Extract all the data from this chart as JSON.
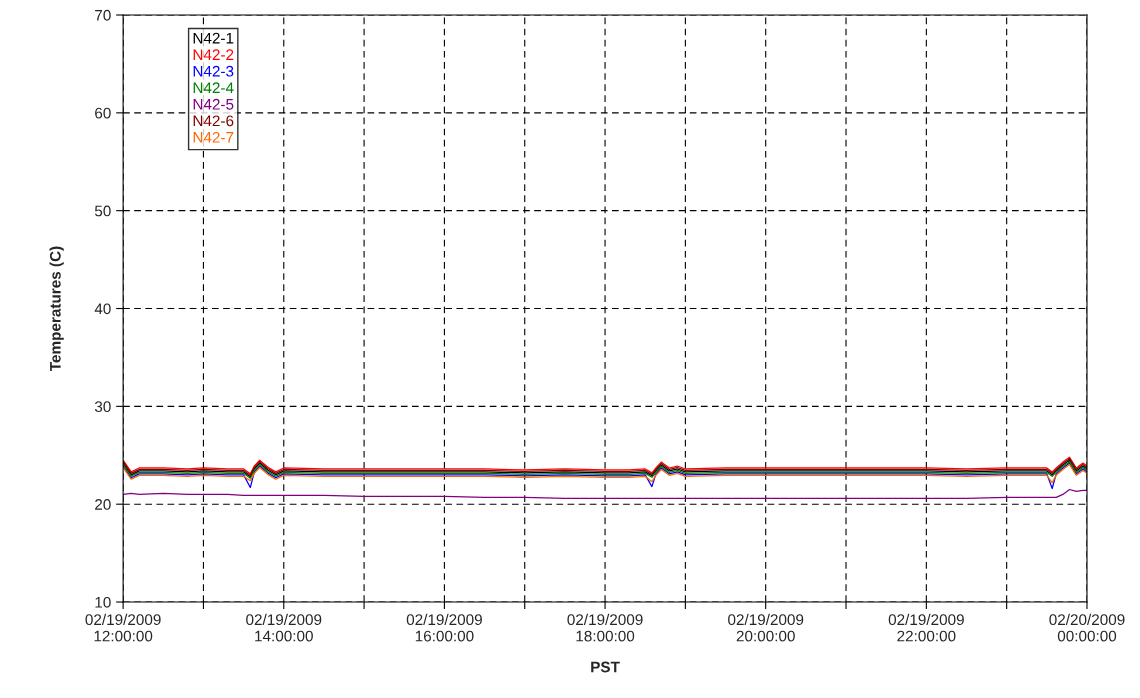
{
  "chart_data": {
    "type": "line",
    "xlabel": "PST",
    "ylabel": "Temperatures (C)",
    "x": [
      "2009-02-19T12:00",
      "2009-02-19T12:06",
      "2009-02-19T12:12",
      "2009-02-19T12:30",
      "2009-02-19T12:48",
      "2009-02-19T13:00",
      "2009-02-19T13:18",
      "2009-02-19T13:30",
      "2009-02-19T13:35",
      "2009-02-19T13:38",
      "2009-02-19T13:42",
      "2009-02-19T13:48",
      "2009-02-19T13:54",
      "2009-02-19T14:00",
      "2009-02-19T14:30",
      "2009-02-19T15:00",
      "2009-02-19T15:30",
      "2009-02-19T16:00",
      "2009-02-19T16:30",
      "2009-02-19T17:00",
      "2009-02-19T17:30",
      "2009-02-19T18:00",
      "2009-02-19T18:18",
      "2009-02-19T18:30",
      "2009-02-19T18:35",
      "2009-02-19T18:38",
      "2009-02-19T18:42",
      "2009-02-19T18:48",
      "2009-02-19T18:54",
      "2009-02-19T19:00",
      "2009-02-19T19:30",
      "2009-02-19T20:00",
      "2009-02-19T20:30",
      "2009-02-19T21:00",
      "2009-02-19T21:30",
      "2009-02-19T22:00",
      "2009-02-19T22:30",
      "2009-02-19T23:00",
      "2009-02-19T23:24",
      "2009-02-19T23:30",
      "2009-02-19T23:34",
      "2009-02-19T23:37",
      "2009-02-19T23:42",
      "2009-02-19T23:47",
      "2009-02-19T23:52",
      "2009-02-19T23:57",
      "2009-02-20T00:00"
    ],
    "series": [
      {
        "name": "N42-1",
        "color": "#000000",
        "values": [
          24.2,
          23.0,
          23.4,
          23.4,
          23.3,
          23.4,
          23.3,
          23.3,
          22.8,
          23.6,
          24.2,
          23.5,
          23.0,
          23.4,
          23.3,
          23.3,
          23.3,
          23.3,
          23.3,
          23.2,
          23.3,
          23.2,
          23.2,
          23.3,
          22.9,
          23.4,
          24.0,
          23.4,
          23.6,
          23.3,
          23.4,
          23.4,
          23.4,
          23.4,
          23.4,
          23.4,
          23.3,
          23.4,
          23.4,
          23.4,
          23.0,
          23.4,
          24.0,
          24.5,
          23.4,
          23.9,
          23.6
        ]
      },
      {
        "name": "N42-2",
        "color": "#ff0000",
        "values": [
          24.5,
          23.3,
          23.7,
          23.7,
          23.6,
          23.7,
          23.6,
          23.6,
          23.1,
          23.9,
          24.5,
          23.8,
          23.3,
          23.7,
          23.6,
          23.6,
          23.6,
          23.6,
          23.6,
          23.5,
          23.6,
          23.5,
          23.5,
          23.6,
          23.2,
          23.7,
          24.3,
          23.7,
          23.9,
          23.6,
          23.7,
          23.7,
          23.7,
          23.7,
          23.7,
          23.7,
          23.6,
          23.7,
          23.7,
          23.7,
          23.3,
          23.7,
          24.3,
          24.8,
          23.7,
          24.2,
          23.9
        ]
      },
      {
        "name": "N42-3",
        "color": "#0000ff",
        "values": [
          23.9,
          22.7,
          23.1,
          23.1,
          23.0,
          23.1,
          23.0,
          23.0,
          21.7,
          23.3,
          23.9,
          23.2,
          22.7,
          23.1,
          23.0,
          23.0,
          23.0,
          23.0,
          23.0,
          22.9,
          23.0,
          22.9,
          22.9,
          23.0,
          21.8,
          23.1,
          23.7,
          23.1,
          23.3,
          23.0,
          23.1,
          23.1,
          23.1,
          23.1,
          23.1,
          23.1,
          23.0,
          23.1,
          23.1,
          23.1,
          21.6,
          23.1,
          23.7,
          24.2,
          23.1,
          23.6,
          23.3
        ]
      },
      {
        "name": "N42-4",
        "color": "#008000",
        "values": [
          24.05,
          22.85,
          23.25,
          23.25,
          23.15,
          23.25,
          23.15,
          23.15,
          22.65,
          23.45,
          24.05,
          23.35,
          22.85,
          23.25,
          23.15,
          23.15,
          23.15,
          23.15,
          23.15,
          23.05,
          23.15,
          23.05,
          23.05,
          23.15,
          22.75,
          23.25,
          23.85,
          23.25,
          23.45,
          23.15,
          23.25,
          23.25,
          23.25,
          23.25,
          23.25,
          23.25,
          23.15,
          23.25,
          23.25,
          23.25,
          22.85,
          23.25,
          23.85,
          24.35,
          23.25,
          23.75,
          23.45
        ]
      },
      {
        "name": "N42-5",
        "color": "#800080",
        "values": [
          21.0,
          21.1,
          21.0,
          21.1,
          21.0,
          21.0,
          21.0,
          20.9,
          20.9,
          20.9,
          20.9,
          20.9,
          20.9,
          20.9,
          20.9,
          20.8,
          20.8,
          20.8,
          20.7,
          20.7,
          20.6,
          20.6,
          20.6,
          20.6,
          20.6,
          20.6,
          20.6,
          20.6,
          20.6,
          20.6,
          20.6,
          20.6,
          20.6,
          20.6,
          20.6,
          20.6,
          20.6,
          20.7,
          20.7,
          20.7,
          20.7,
          20.7,
          21.0,
          21.5,
          21.3,
          21.4,
          21.4
        ]
      },
      {
        "name": "N42-6",
        "color": "#800000",
        "values": [
          24.35,
          23.15,
          23.55,
          23.55,
          23.45,
          23.55,
          23.45,
          23.45,
          22.95,
          23.75,
          24.35,
          23.65,
          23.15,
          23.55,
          23.45,
          23.45,
          23.45,
          23.45,
          23.45,
          23.35,
          23.45,
          23.35,
          23.35,
          23.45,
          23.05,
          23.55,
          24.15,
          23.55,
          23.75,
          23.45,
          23.55,
          23.55,
          23.55,
          23.55,
          23.55,
          23.55,
          23.45,
          23.55,
          23.55,
          23.55,
          23.15,
          23.55,
          24.15,
          24.65,
          23.55,
          24.05,
          23.75
        ]
      },
      {
        "name": "N42-7",
        "color": "#ff6600",
        "values": [
          23.75,
          22.55,
          22.95,
          22.95,
          22.85,
          22.95,
          22.85,
          22.85,
          22.4,
          23.15,
          23.75,
          23.05,
          22.55,
          22.95,
          22.85,
          22.85,
          22.85,
          22.85,
          22.85,
          22.75,
          22.85,
          22.75,
          22.75,
          22.85,
          22.3,
          22.95,
          23.55,
          22.95,
          23.15,
          22.85,
          22.95,
          22.95,
          22.95,
          22.95,
          22.95,
          22.95,
          22.85,
          22.95,
          22.95,
          22.95,
          22.2,
          22.95,
          23.55,
          24.05,
          22.95,
          23.45,
          23.15
        ]
      }
    ],
    "xlim": [
      "2009-02-19T12:00",
      "2009-02-20T00:00"
    ],
    "xticks": [
      {
        "value": "2009-02-19T12:00",
        "label": "02/19/2009\n12:00:00"
      },
      {
        "value": "2009-02-19T13:00",
        "label": null
      },
      {
        "value": "2009-02-19T14:00",
        "label": "02/19/2009\n14:00:00"
      },
      {
        "value": "2009-02-19T15:00",
        "label": null
      },
      {
        "value": "2009-02-19T16:00",
        "label": "02/19/2009\n16:00:00"
      },
      {
        "value": "2009-02-19T17:00",
        "label": null
      },
      {
        "value": "2009-02-19T18:00",
        "label": "02/19/2009\n18:00:00"
      },
      {
        "value": "2009-02-19T19:00",
        "label": null
      },
      {
        "value": "2009-02-19T20:00",
        "label": "02/19/2009\n20:00:00"
      },
      {
        "value": "2009-02-19T21:00",
        "label": null
      },
      {
        "value": "2009-02-19T22:00",
        "label": "02/19/2009\n22:00:00"
      },
      {
        "value": "2009-02-19T23:00",
        "label": null
      },
      {
        "value": "2009-02-20T00:00",
        "label": "02/20/2009\n00:00:00"
      }
    ],
    "ylim": [
      10,
      70
    ],
    "yticks": [
      10,
      20,
      30,
      40,
      50,
      60,
      70
    ],
    "grid": true,
    "legend": "top left",
    "marker": "none",
    "line_style": "solid"
  }
}
